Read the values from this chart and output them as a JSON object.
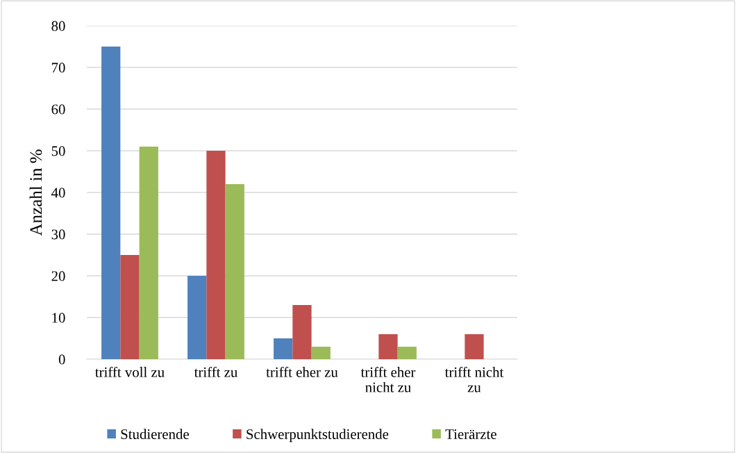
{
  "chart_data": {
    "type": "bar",
    "ylabel": "Anzahl in %",
    "categories": [
      "trifft voll zu",
      "trifft zu",
      "trifft eher zu",
      "trifft eher\nnicht zu",
      "trifft nicht\nzu"
    ],
    "series": [
      {
        "name": "Studierende",
        "color": "#4f81bd",
        "values": [
          75,
          20,
          5,
          0,
          0
        ]
      },
      {
        "name": "Schwerpunktstudierende",
        "color": "#c0504d",
        "values": [
          25,
          50,
          13,
          6,
          6
        ]
      },
      {
        "name": "Tierärzte",
        "color": "#9bbb59",
        "values": [
          51,
          42,
          3,
          3,
          0
        ]
      }
    ],
    "ylim": [
      0,
      80
    ],
    "yticks": [
      0,
      10,
      20,
      30,
      40,
      50,
      60,
      70,
      80
    ],
    "grid": "y",
    "legend": "bottom"
  }
}
